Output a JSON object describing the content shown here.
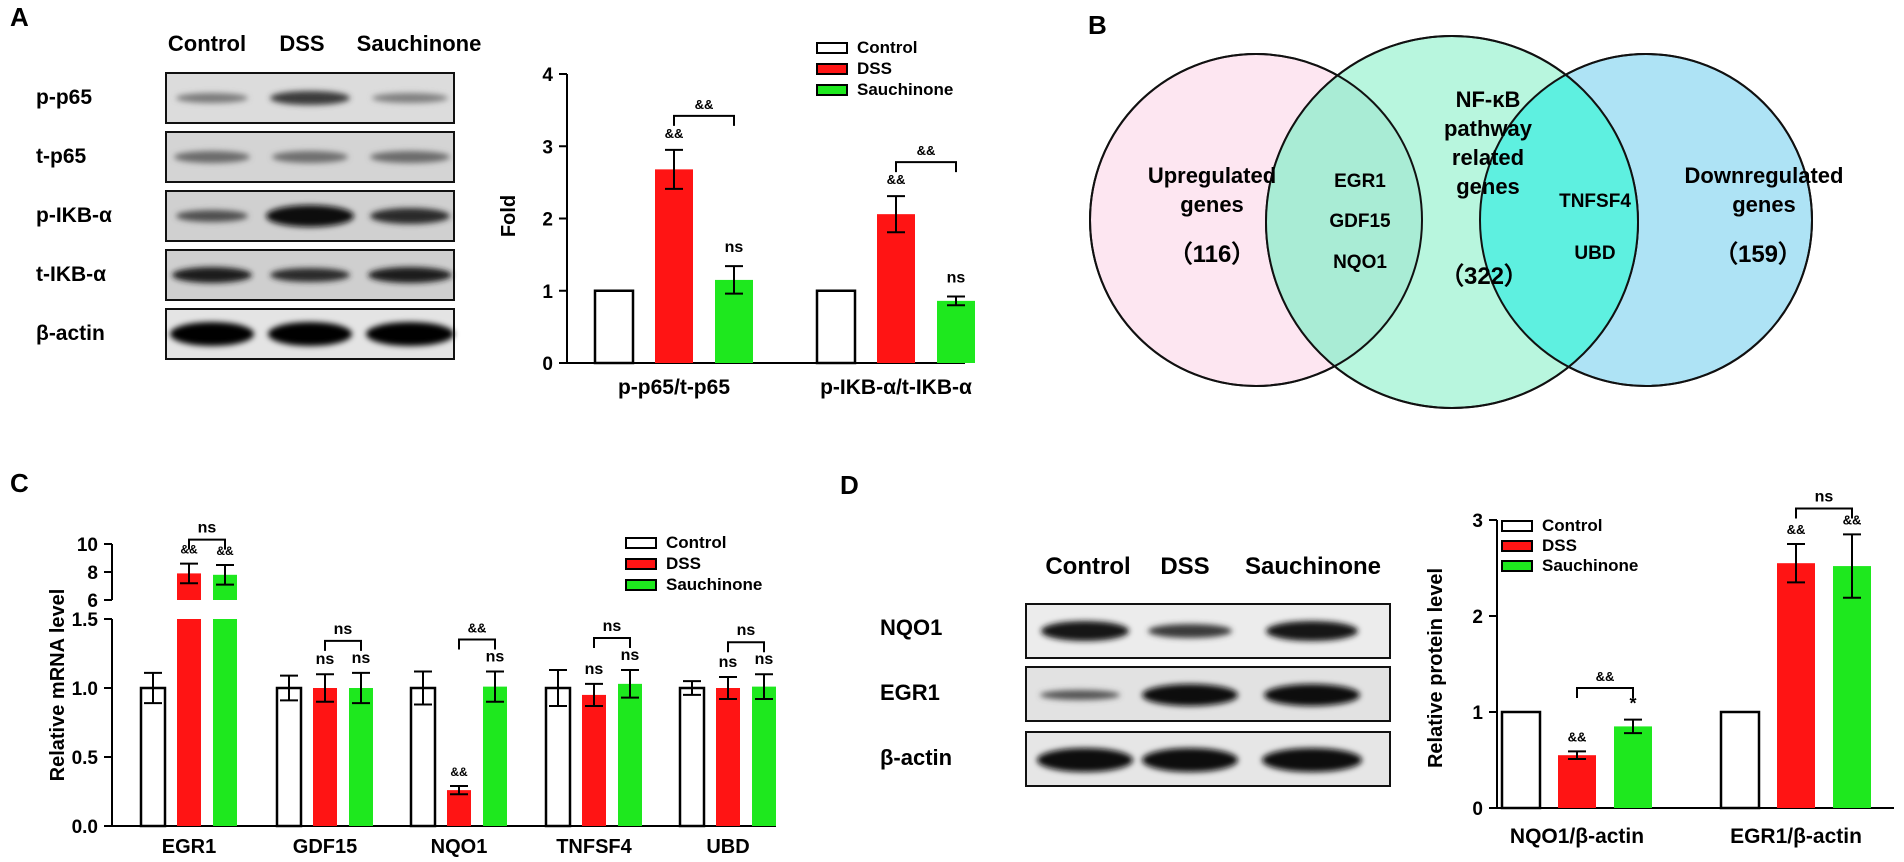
{
  "panel_labels": {
    "a": "A",
    "b": "B",
    "c": "C",
    "d": "D"
  },
  "colors": {
    "control": "#ffffff",
    "dss": "#ff1414",
    "sauchinone": "#1ee81e",
    "set_a": "#fde6f1",
    "set_b": "#b4f5dc",
    "set_c": "#aee3f5"
  },
  "panel_a": {
    "blot_lanes": [
      "Control",
      "DSS",
      "Sauchinone"
    ],
    "blot_rows": [
      "p-p65",
      "t-p65",
      "p-IKB-α",
      "t-IKB-α",
      "β-actin"
    ],
    "sig": {
      "dss": "&&",
      "dss_sauch": "&&",
      "sauch": "ns"
    }
  },
  "panel_b": {
    "up_label_1": "Upregulated",
    "up_label_2": "genes",
    "up_count": "（116）",
    "nf_label_1": "NF-κB",
    "nf_label_2": "pathway",
    "nf_label_3": "related",
    "nf_label_4": "genes",
    "nf_count": "（322）",
    "down_label_1": "Downregulated",
    "down_label_2": "genes",
    "down_count": "（159）",
    "overlap_left": [
      "EGR1",
      "GDF15",
      "NQO1"
    ],
    "overlap_right": [
      "TNFSF4",
      "UBD"
    ]
  },
  "panel_d": {
    "blot_lanes": [
      "Control",
      "DSS",
      "Sauchinone"
    ],
    "blot_rows": [
      "NQO1",
      "EGR1",
      "β-actin"
    ]
  },
  "chart_data": [
    {
      "type": "bar",
      "id": "A",
      "categories": [
        "p-p65/t-p65",
        "p-IKB-α/t-IKB-α"
      ],
      "series": [
        {
          "name": "Control",
          "values": [
            1,
            1
          ],
          "errors": [
            0,
            0
          ]
        },
        {
          "name": "DSS",
          "values": [
            2.68,
            2.06
          ],
          "errors": [
            0.27,
            0.25
          ]
        },
        {
          "name": "Sauchinone",
          "values": [
            1.15,
            0.86
          ],
          "errors": [
            0.19,
            0.06
          ]
        }
      ],
      "ylabel": "Fold",
      "ylim": [
        0,
        4
      ],
      "yticks": [
        "0",
        "1",
        "2",
        "3",
        "4"
      ],
      "legend": "top-right",
      "annotations": {
        "dss": [
          "&&",
          "&&"
        ],
        "sauch": [
          "ns",
          "ns"
        ],
        "bracket": [
          "&&",
          "&&"
        ]
      }
    },
    {
      "type": "bar",
      "id": "C",
      "categories": [
        "EGR1",
        "GDF15",
        "NQO1",
        "TNFSF4",
        "UBD"
      ],
      "series": [
        {
          "name": "Control",
          "values": [
            1.0,
            1.0,
            1.0,
            1.0,
            1.0
          ],
          "errors": [
            0.11,
            0.09,
            0.12,
            0.13,
            0.05
          ]
        },
        {
          "name": "DSS",
          "values": [
            7.9,
            1.0,
            0.26,
            0.95,
            1.0
          ],
          "errors": [
            0.7,
            0.1,
            0.03,
            0.08,
            0.08
          ]
        },
        {
          "name": "Sauchinone",
          "values": [
            7.8,
            1.0,
            1.01,
            1.03,
            1.01
          ],
          "errors": [
            0.7,
            0.11,
            0.11,
            0.1,
            0.09
          ]
        }
      ],
      "ylabel": "Relative mRNA level",
      "ylim": [
        0,
        10
      ],
      "axis_break": [
        1.5,
        6
      ],
      "yticks_lower": [
        "0.0",
        "0.5",
        "1.0",
        "1.5"
      ],
      "yticks_upper": [
        "6",
        "8",
        "10"
      ],
      "legend": "top-right",
      "annotations": {
        "dss": [
          "&&",
          "ns",
          "&&",
          "ns",
          "ns"
        ],
        "sauch": [
          "&&",
          "ns",
          "ns",
          "ns",
          "ns"
        ],
        "bracket": [
          "ns",
          "ns",
          "&&",
          "ns",
          "ns"
        ]
      }
    },
    {
      "type": "bar",
      "id": "D",
      "categories": [
        "NQO1/β-actin",
        "EGR1/β-actin"
      ],
      "series": [
        {
          "name": "Control",
          "values": [
            1,
            1
          ],
          "errors": [
            0,
            0
          ]
        },
        {
          "name": "DSS",
          "values": [
            0.55,
            2.55
          ],
          "errors": [
            0.04,
            0.2
          ]
        },
        {
          "name": "Sauchinone",
          "values": [
            0.85,
            2.52
          ],
          "errors": [
            0.07,
            0.33
          ]
        }
      ],
      "ylabel": "Relative protein level",
      "ylim": [
        0,
        3
      ],
      "yticks": [
        "0",
        "1",
        "2",
        "3"
      ],
      "legend": "top-left",
      "annotations": {
        "dss": [
          "&&",
          "&&"
        ],
        "sauch": [
          "*",
          "&&"
        ],
        "bracket": [
          "&&",
          "ns"
        ]
      }
    }
  ]
}
